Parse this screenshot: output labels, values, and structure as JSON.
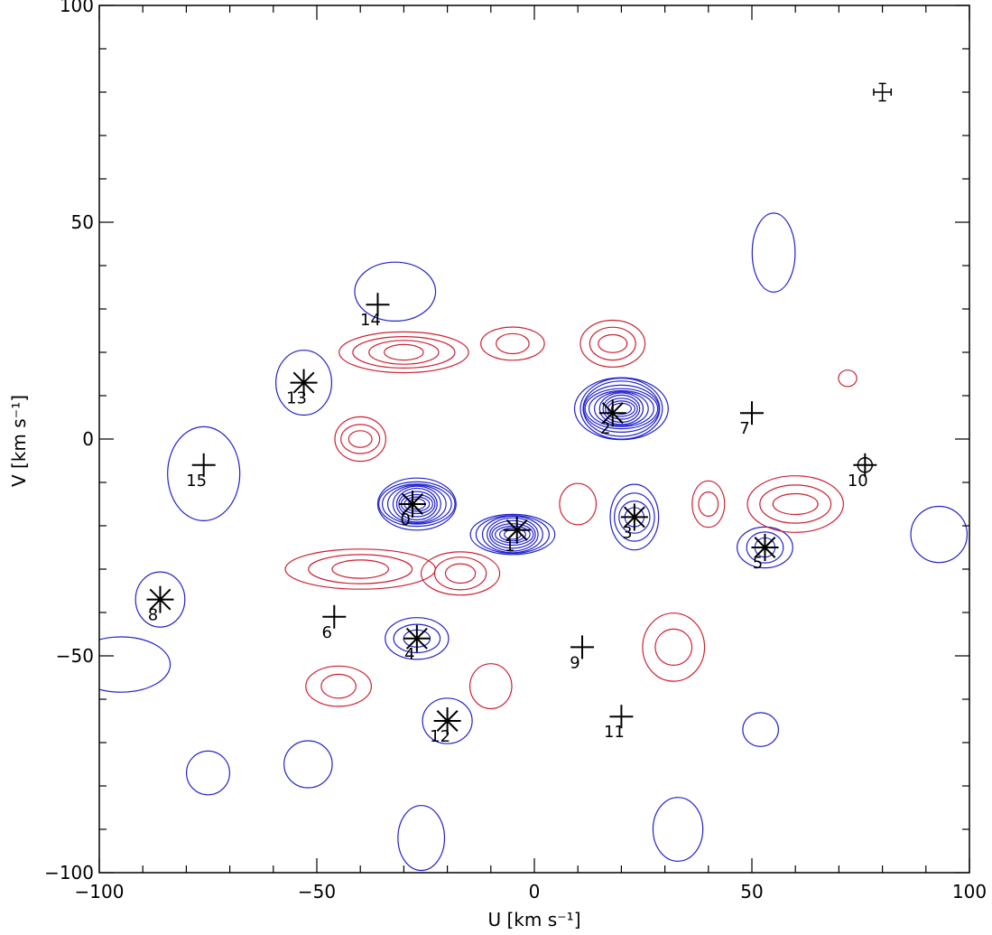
{
  "chart_data": {
    "type": "contour",
    "xlabel": "U [km s⁻¹]",
    "ylabel": "V [km s⁻¹]",
    "xlim": [
      -100,
      100
    ],
    "ylim": [
      -100,
      100
    ],
    "xticks": [
      -100,
      -50,
      0,
      50,
      100
    ],
    "yticks": [
      -100,
      -50,
      0,
      50,
      100
    ],
    "grid": false,
    "colors": {
      "positive": "#2222cc",
      "negative": "#cc2233",
      "axis": "#000000"
    },
    "error_bar": {
      "x": 80,
      "y": 80,
      "xerr": 2,
      "yerr": 2
    },
    "markers": [
      {
        "id": "0",
        "label": "0",
        "u": -28,
        "v": -15,
        "symbol": "asterisk"
      },
      {
        "id": "1",
        "label": "1",
        "u": -4,
        "v": -21,
        "symbol": "asterisk"
      },
      {
        "id": "2",
        "label": "2",
        "u": 18,
        "v": 6,
        "symbol": "asterisk"
      },
      {
        "id": "3",
        "label": "3",
        "u": 23,
        "v": -18,
        "symbol": "asterisk"
      },
      {
        "id": "4",
        "label": "4",
        "u": -27,
        "v": -46,
        "symbol": "asterisk"
      },
      {
        "id": "5",
        "label": "5",
        "u": 53,
        "v": -25,
        "symbol": "asterisk"
      },
      {
        "id": "6",
        "label": "6",
        "u": -46,
        "v": -41,
        "symbol": "plus"
      },
      {
        "id": "7",
        "label": "7",
        "u": 50,
        "v": 6,
        "symbol": "plus"
      },
      {
        "id": "8",
        "label": "8",
        "u": -86,
        "v": -37,
        "symbol": "asterisk"
      },
      {
        "id": "9",
        "label": "9",
        "u": 11,
        "v": -48,
        "symbol": "plus"
      },
      {
        "id": "10",
        "label": "10",
        "u": 76,
        "v": -6,
        "symbol": "plus-circle"
      },
      {
        "id": "11",
        "label": "11",
        "u": 20,
        "v": -64,
        "symbol": "plus"
      },
      {
        "id": "12",
        "label": "12",
        "u": -20,
        "v": -65,
        "symbol": "asterisk"
      },
      {
        "id": "13",
        "label": "13",
        "u": -53,
        "v": 13,
        "symbol": "asterisk"
      },
      {
        "id": "14",
        "label": "14",
        "u": -36,
        "v": 31,
        "symbol": "plus"
      },
      {
        "id": "15",
        "label": "15",
        "u": -76,
        "v": -6,
        "symbol": "plus"
      }
    ],
    "peaks": [
      {
        "sign": "positive",
        "u": -27,
        "v": -15,
        "a": 9,
        "b": 6,
        "levels": 10
      },
      {
        "sign": "positive",
        "u": -5,
        "v": -22,
        "a": 9,
        "b": 5,
        "levels": 9
      },
      {
        "sign": "positive",
        "u": 20,
        "v": 7,
        "a": 11,
        "b": 7,
        "levels": 12
      },
      {
        "sign": "positive",
        "u": 23,
        "v": -18,
        "a": 6,
        "b": 7,
        "levels": 4
      },
      {
        "sign": "positive",
        "u": -27,
        "v": -46,
        "a": 7,
        "b": 5,
        "levels": 3
      },
      {
        "sign": "positive",
        "u": 53,
        "v": -25,
        "a": 6,
        "b": 5,
        "levels": 3
      },
      {
        "sign": "positive",
        "u": -86,
        "v": -37,
        "a": 6,
        "b": 6,
        "levels": 1
      },
      {
        "sign": "positive",
        "u": -20,
        "v": -65,
        "a": 6,
        "b": 5,
        "levels": 1
      },
      {
        "sign": "positive",
        "u": -53,
        "v": 13,
        "a": 6,
        "b": 8,
        "levels": 1
      },
      {
        "sign": "positive",
        "u": -32,
        "v": 34,
        "a": 9,
        "b": 7,
        "levels": 1
      },
      {
        "sign": "positive",
        "u": -76,
        "v": -8,
        "a": 9,
        "b": 10,
        "levels": 1
      },
      {
        "sign": "positive",
        "u": 55,
        "v": 43,
        "a": 5,
        "b": 9,
        "levels": 1
      },
      {
        "sign": "positive",
        "u": 93,
        "v": -22,
        "a": 6,
        "b": 7,
        "levels": 1
      },
      {
        "sign": "positive",
        "u": -75,
        "v": -77,
        "a": 5,
        "b": 5,
        "levels": 1
      },
      {
        "sign": "positive",
        "u": -52,
        "v": -75,
        "a": 6,
        "b": 5,
        "levels": 1
      },
      {
        "sign": "positive",
        "u": 52,
        "v": -67,
        "a": 4,
        "b": 4,
        "levels": 1
      },
      {
        "sign": "positive",
        "u": -26,
        "v": -92,
        "a": 5,
        "b": 8,
        "levels": 1
      },
      {
        "sign": "positive",
        "u": 33,
        "v": -90,
        "a": 6,
        "b": 7,
        "levels": 1
      },
      {
        "sign": "positive",
        "u": -95,
        "v": -52,
        "a": 12,
        "b": 6,
        "levels": 1
      },
      {
        "sign": "negative",
        "u": -30,
        "v": 20,
        "a": 14,
        "b": 5,
        "levels": 4
      },
      {
        "sign": "negative",
        "u": -5,
        "v": 22,
        "a": 7,
        "b": 4,
        "levels": 2
      },
      {
        "sign": "negative",
        "u": 18,
        "v": 22,
        "a": 8,
        "b": 5,
        "levels": 3
      },
      {
        "sign": "negative",
        "u": -40,
        "v": 0,
        "a": 6,
        "b": 5,
        "levels": 3
      },
      {
        "sign": "negative",
        "u": -40,
        "v": -30,
        "a": 16,
        "b": 5,
        "levels": 3
      },
      {
        "sign": "negative",
        "u": -17,
        "v": -31,
        "a": 9,
        "b": 5,
        "levels": 3
      },
      {
        "sign": "negative",
        "u": 60,
        "v": -15,
        "a": 12,
        "b": 6,
        "levels": 3
      },
      {
        "sign": "negative",
        "u": 32,
        "v": -48,
        "a": 7,
        "b": 8,
        "levels": 2
      },
      {
        "sign": "negative",
        "u": -45,
        "v": -57,
        "a": 7,
        "b": 5,
        "levels": 2
      },
      {
        "sign": "negative",
        "u": -10,
        "v": -57,
        "a": 5,
        "b": 5,
        "levels": 1
      },
      {
        "sign": "negative",
        "u": 40,
        "v": -15,
        "a": 4,
        "b": 5,
        "levels": 2
      },
      {
        "sign": "negative",
        "u": 10,
        "v": -15,
        "a": 4,
        "b": 5,
        "levels": 1
      },
      {
        "sign": "negative",
        "u": 72,
        "v": 14,
        "a": 2,
        "b": 2,
        "levels": 1
      }
    ]
  }
}
